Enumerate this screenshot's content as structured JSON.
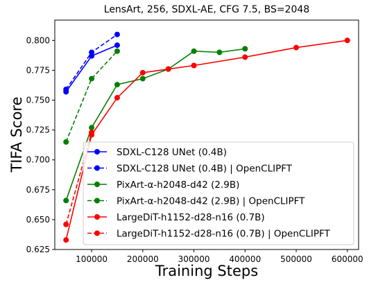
{
  "chart_data": {
    "type": "line",
    "title": "LensArt, 256, SDXL-AE, CFG 7.5, BS=2048",
    "xlabel": "Training Steps",
    "ylabel": "TIFA Score",
    "xlim": [
      28000,
      622000
    ],
    "ylim": [
      0.625,
      0.817
    ],
    "x_ticks": [
      100000,
      200000,
      300000,
      400000,
      500000,
      600000
    ],
    "x_tick_labels": [
      "100000",
      "200000",
      "300000",
      "400000",
      "500000",
      "600000"
    ],
    "y_ticks": [
      0.625,
      0.65,
      0.675,
      0.7,
      0.725,
      0.75,
      0.775,
      0.8
    ],
    "y_tick_labels": [
      "0.625",
      "0.650",
      "0.675",
      "0.700",
      "0.725",
      "0.750",
      "0.775",
      "0.800"
    ],
    "grid": false,
    "legend_position": "lower-right",
    "series": [
      {
        "name": "SDXL-C128 UNet (0.4B)",
        "color": "#0000ff",
        "dash": "solid",
        "x": [
          50000,
          100000,
          150000
        ],
        "y": [
          0.757,
          0.787,
          0.796
        ]
      },
      {
        "name": "SDXL-C128 UNet (0.4B) | OpenCLIPFT",
        "color": "#0000ff",
        "dash": "dashed",
        "x": [
          50000,
          100000,
          150000
        ],
        "y": [
          0.759,
          0.79,
          0.805
        ]
      },
      {
        "name": "PixArt-α-h2048-d42 (2.9B)",
        "color": "#008000",
        "dash": "solid",
        "x": [
          50000,
          100000,
          150000,
          200000,
          250000,
          300000,
          350000,
          400000
        ],
        "y": [
          0.666,
          0.727,
          0.763,
          0.768,
          0.776,
          0.791,
          0.79,
          0.793
        ]
      },
      {
        "name": "PixArt-α-h2048-d42 (2.9B) | OpenCLIPFT",
        "color": "#008000",
        "dash": "dashed",
        "x": [
          50000,
          100000,
          150000
        ],
        "y": [
          0.715,
          0.768,
          0.791
        ]
      },
      {
        "name": "LargeDiT-h1152-d28-n16 (0.7B)",
        "color": "#ff0000",
        "dash": "solid",
        "x": [
          50000,
          100000,
          150000,
          200000,
          250000,
          300000,
          400000,
          500000,
          600000
        ],
        "y": [
          0.633,
          0.721,
          0.752,
          0.773,
          0.776,
          0.779,
          0.786,
          0.794,
          0.8
        ]
      },
      {
        "name": "LargeDiT-h1152-d28-n16 (0.7B) | OpenCLIPFT",
        "color": "#ff0000",
        "dash": "dashed",
        "x": [
          50000,
          100000
        ],
        "y": [
          0.646,
          0.723
        ]
      }
    ]
  }
}
